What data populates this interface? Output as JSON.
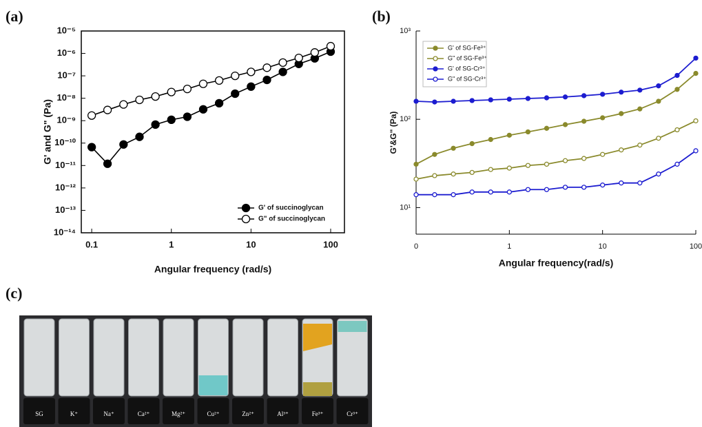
{
  "panel_labels": [
    "(a)",
    "(b)",
    "(c)"
  ],
  "photo": {
    "labels": [
      "SG",
      "K⁺",
      "Na⁺",
      "Ca²⁺",
      "Mg²⁺",
      "Cu²⁺",
      "Zn²⁺",
      "Al³⁺",
      "Fe³⁺",
      "Cr³⁺"
    ]
  },
  "chart_data": [
    {
      "type": "line",
      "xlabel": "Angular frequency (rad/s)",
      "ylabel": "G' and G\" (Pa)",
      "xscale": "log",
      "yscale": "log",
      "xlim": [
        0.074,
        149
      ],
      "ylim": [
        1e-14,
        1e-05
      ],
      "xticks": [
        0.1,
        1,
        10,
        100
      ],
      "yticks": [
        {
          "value": 1e-14,
          "label": "10⁻¹⁴"
        },
        {
          "value": 1e-13,
          "label": "10⁻¹³"
        },
        {
          "value": 1e-12,
          "label": "10⁻¹²"
        },
        {
          "value": 1e-11,
          "label": "10⁻¹¹"
        },
        {
          "value": 1e-10,
          "label": "10⁻¹⁰"
        },
        {
          "value": 1e-09,
          "label": "10⁻⁹"
        },
        {
          "value": 1e-08,
          "label": "10⁻⁸"
        },
        {
          "value": 1e-07,
          "label": "10⁻⁷"
        },
        {
          "value": 1e-06,
          "label": "10⁻⁶"
        },
        {
          "value": 1e-05,
          "label": "10⁻⁵"
        }
      ],
      "legend": "lower right",
      "x": [
        0.1,
        0.158,
        0.251,
        0.398,
        0.631,
        1,
        1.585,
        2.512,
        3.981,
        6.31,
        10,
        15.85,
        25.12,
        39.81,
        63.1,
        100
      ],
      "series": [
        {
          "name": "G' of succinoglycan",
          "color": "#000000",
          "marker_fill": "#000000",
          "values": [
            6.6e-11,
            1.2e-11,
            8.7e-11,
            1.9e-10,
            6.7e-10,
            1.1e-09,
            1.5e-09,
            3.2e-09,
            6e-09,
            1.6e-08,
            3.3e-08,
            6.6e-08,
            1.5e-07,
            3.4e-07,
            6e-07,
            1.2e-06
          ]
        },
        {
          "name": "G\" of succinoglycan",
          "color": "#000000",
          "marker_fill": "#ffffff",
          "values": [
            1.7e-09,
            3e-09,
            5.3e-09,
            8.5e-09,
            1.2e-08,
            1.9e-08,
            2.6e-08,
            4.4e-08,
            6.2e-08,
            1e-07,
            1.5e-07,
            2.3e-07,
            3.9e-07,
            6.3e-07,
            1.1e-06,
            2.1e-06
          ]
        }
      ]
    },
    {
      "type": "line",
      "xlabel": "Angular frequency(rad/s)",
      "ylabel": "G'&G\" (Pa)",
      "xscale": "log",
      "yscale": "log",
      "xlim": [
        0.1,
        100
      ],
      "ylim": [
        5,
        1000
      ],
      "xticks": [
        {
          "value": 0.1,
          "label": "0"
        },
        1,
        10,
        100
      ],
      "yticks": [
        {
          "value": 10,
          "label": "10¹"
        },
        {
          "value": 100,
          "label": "10²"
        },
        {
          "value": 1000,
          "label": "10³"
        }
      ],
      "legend": "upper left",
      "x": [
        0.1,
        0.158,
        0.251,
        0.398,
        0.631,
        1,
        1.585,
        2.512,
        3.981,
        6.31,
        10,
        15.85,
        25.12,
        39.81,
        63.1,
        100
      ],
      "series": [
        {
          "name": "G' of SG-Fe³⁺",
          "color": "#8a8a2c",
          "marker_fill": "#8a8a2c",
          "values": [
            31,
            40,
            47,
            53,
            59,
            66,
            72,
            79,
            87,
            95,
            104,
            116,
            131,
            160,
            218,
            331
          ]
        },
        {
          "name": "G\" of SG-Fe³⁺",
          "color": "#8a8a2c",
          "marker_fill": "#ffffff",
          "values": [
            21,
            23,
            24,
            25,
            27,
            28,
            30,
            31,
            34,
            36,
            40,
            45,
            51,
            61,
            76,
            96
          ]
        },
        {
          "name": "G' of SG-Cr³⁺",
          "color": "#1c1cd0",
          "marker_fill": "#1c1cd0",
          "values": [
            160,
            157,
            160,
            163,
            166,
            169,
            172,
            175,
            179,
            185,
            192,
            203,
            214,
            239,
            314,
            493
          ]
        },
        {
          "name": "G\" of SG-Cr³⁺",
          "color": "#1c1cd0",
          "marker_fill": "#ffffff",
          "values": [
            14,
            14,
            14,
            15,
            15,
            15,
            16,
            16,
            17,
            17,
            18,
            19,
            19,
            24,
            31,
            44
          ]
        }
      ]
    }
  ]
}
